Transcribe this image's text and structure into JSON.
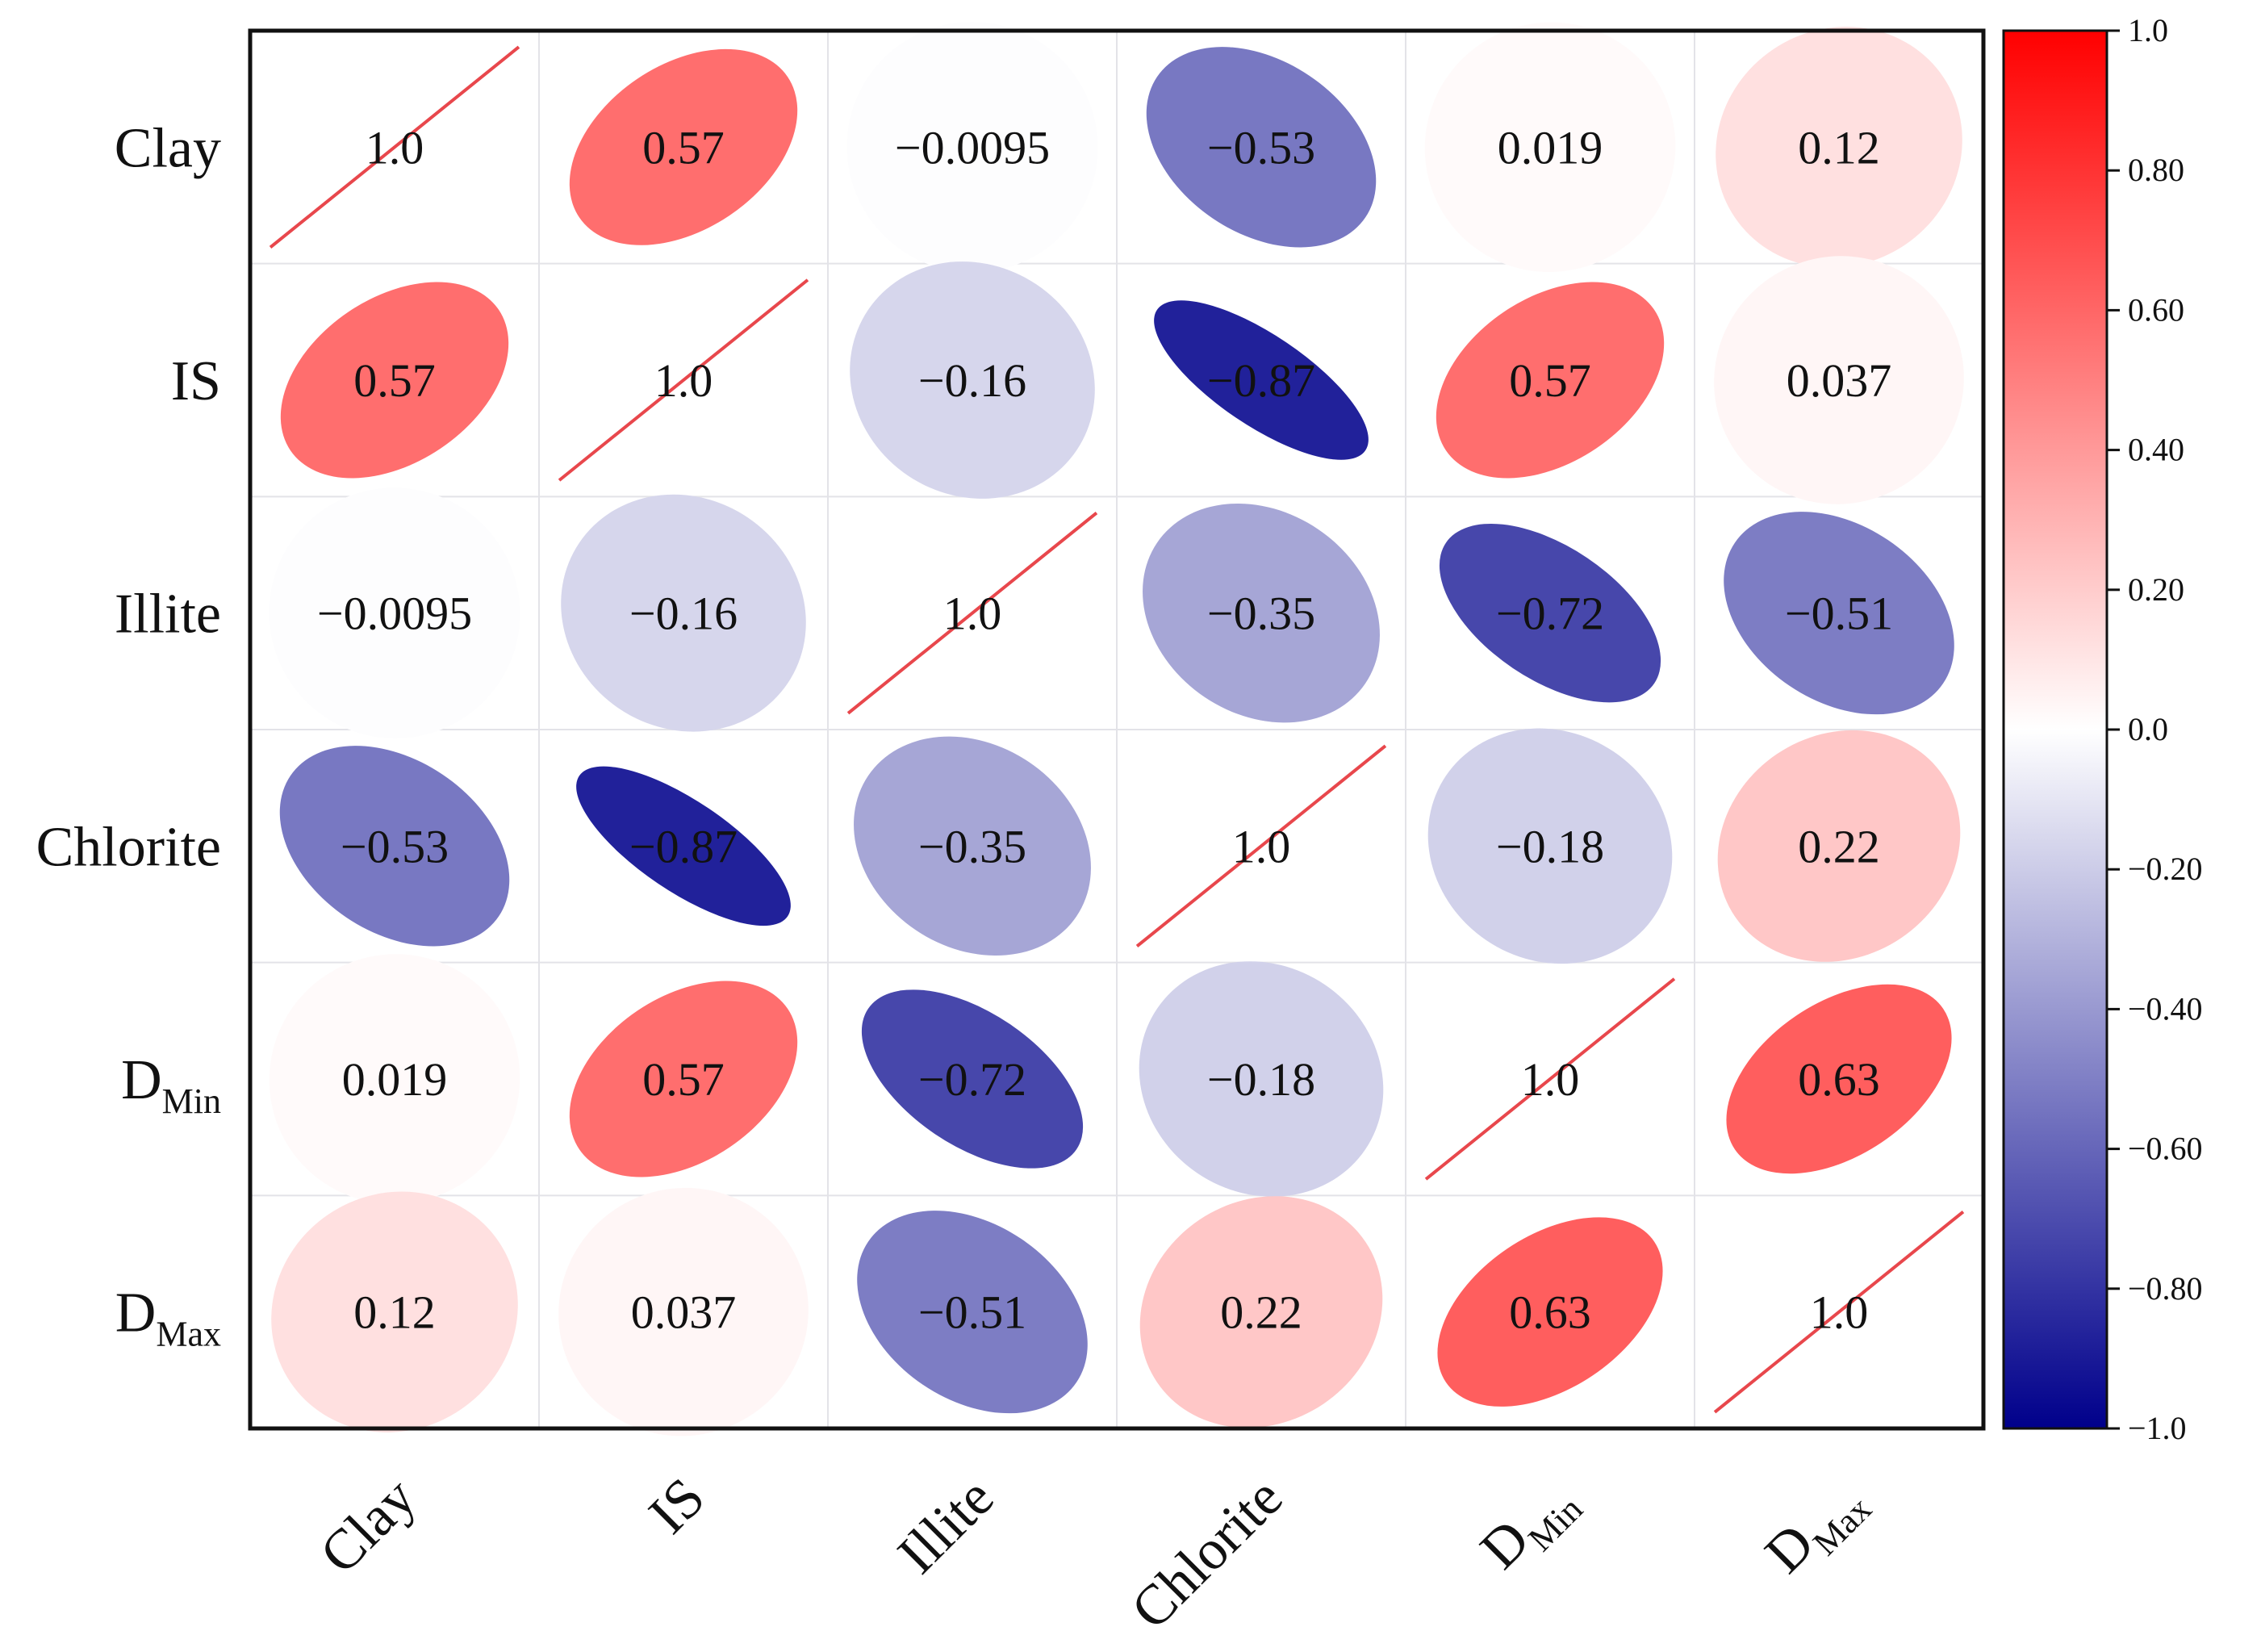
{
  "chart_data": {
    "type": "heatmap",
    "style": "ellipse-correlation-matrix",
    "variables": [
      {
        "base": "Clay",
        "sub": ""
      },
      {
        "base": "IS",
        "sub": ""
      },
      {
        "base": "Illite",
        "sub": ""
      },
      {
        "base": "Chlorite",
        "sub": ""
      },
      {
        "base": "D",
        "sub": "Min"
      },
      {
        "base": "D",
        "sub": "Max"
      }
    ],
    "matrix": [
      [
        1.0,
        0.57,
        -0.0095,
        -0.53,
        0.019,
        0.12
      ],
      [
        0.57,
        1.0,
        -0.16,
        -0.87,
        0.57,
        0.037
      ],
      [
        -0.0095,
        -0.16,
        1.0,
        -0.35,
        -0.72,
        -0.51
      ],
      [
        -0.53,
        -0.87,
        -0.35,
        1.0,
        -0.18,
        0.22
      ],
      [
        0.019,
        0.57,
        -0.72,
        -0.18,
        1.0,
        0.63
      ],
      [
        0.12,
        0.037,
        -0.51,
        0.22,
        0.63,
        1.0
      ]
    ],
    "labels": [
      [
        "1.0",
        "0.57",
        "−0.0095",
        "−0.53",
        "0.019",
        "0.12"
      ],
      [
        "0.57",
        "1.0",
        "−0.16",
        "−0.87",
        "0.57",
        "0.037"
      ],
      [
        "−0.0095",
        "−0.16",
        "1.0",
        "−0.35",
        "−0.72",
        "−0.51"
      ],
      [
        "−0.53",
        "−0.87",
        "−0.35",
        "1.0",
        "−0.18",
        "0.22"
      ],
      [
        "0.019",
        "0.57",
        "−0.72",
        "−0.18",
        "1.0",
        "0.63"
      ],
      [
        "0.12",
        "0.037",
        "−0.51",
        "0.22",
        "0.63",
        "1.0"
      ]
    ],
    "colorbar": {
      "range": [
        -1.0,
        1.0
      ],
      "ticks": [
        1.0,
        0.8,
        0.6,
        0.4,
        0.2,
        0.0,
        -0.2,
        -0.4,
        -0.6,
        -0.8,
        -1.0
      ],
      "tick_labels": [
        "1.0",
        "0.80",
        "0.60",
        "0.40",
        "0.20",
        "0.0",
        "−0.20",
        "−0.40",
        "−0.60",
        "−0.80",
        "−1.0"
      ],
      "cmap": [
        "#00008b",
        "#ffffff",
        "#ff0000"
      ]
    },
    "diagonal_line_color": "#e8474c",
    "grid": true
  }
}
